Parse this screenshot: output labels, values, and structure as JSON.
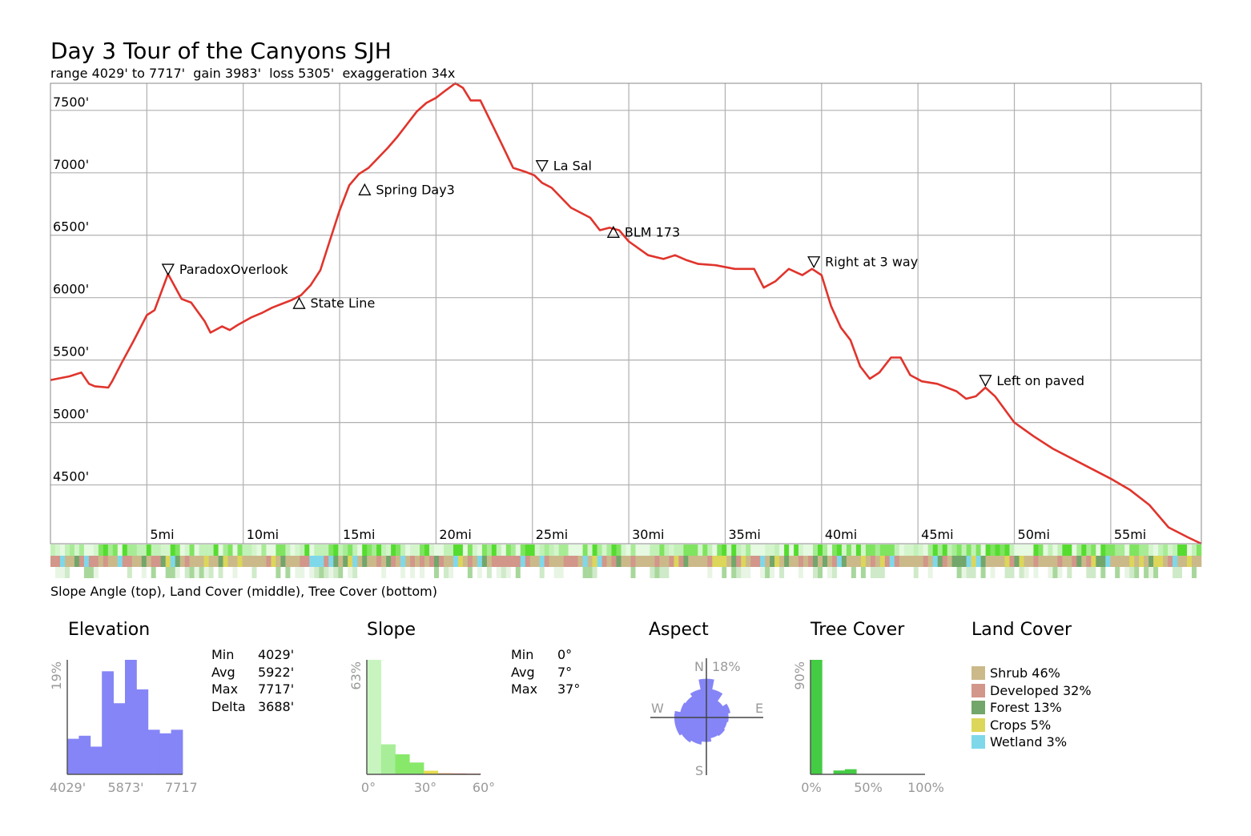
{
  "title": "Day 3 Tour of the Canyons SJH",
  "subtitle": "range 4029' to 7717'  gain 3983'  loss 5305'  exaggeration 34x",
  "strip_caption": "Slope Angle (top), Land Cover (middle), Tree Cover (bottom)",
  "colors": {
    "profile_line": "#e0342c",
    "grid": "#b0b0b0",
    "elevation_hist": "#8585f7",
    "aspect": "#8585f7",
    "tree_cover_hist": "#44cc44",
    "axis_text_gray": "#999999"
  },
  "chart_data": [
    {
      "type": "line",
      "title": "Day 3 Tour of the Canyons SJH",
      "subtitle": "range 4029' to 7717'  gain 3983'  loss 5305'  exaggeration 34x",
      "x_unit": "mi",
      "y_unit": "ft",
      "xlim": [
        0,
        59.7
      ],
      "ylim": [
        4029,
        7717
      ],
      "x_ticks": [
        5,
        10,
        15,
        20,
        25,
        30,
        35,
        40,
        45,
        50,
        55
      ],
      "x_tick_labels": [
        "5mi",
        "10mi",
        "15mi",
        "20mi",
        "25mi",
        "30mi",
        "35mi",
        "40mi",
        "45mi",
        "50mi",
        "55mi"
      ],
      "y_ticks": [
        4500,
        5000,
        5500,
        6000,
        6500,
        7000,
        7500
      ],
      "y_tick_labels": [
        "4500'",
        "5000'",
        "5500'",
        "6000'",
        "6500'",
        "7000'",
        "7500'"
      ],
      "grid": true,
      "series": [
        {
          "x": [
            0,
            1,
            1.6,
            2,
            2.3,
            3,
            3.2,
            3.7,
            4.3,
            5,
            5.4,
            6.1,
            6.8,
            7.3,
            8,
            8.3,
            8.9,
            9.3,
            9.7,
            10.4,
            11,
            11.5,
            12,
            12.5,
            13,
            13.5,
            14,
            14.5,
            15,
            15.5,
            16,
            16.5,
            17,
            17.5,
            18,
            18.5,
            19,
            19.5,
            20,
            20.5,
            21,
            21.4,
            21.8,
            22.3,
            23,
            23.5,
            24,
            24.6,
            25.1,
            25.5,
            26,
            27,
            28,
            28.5,
            29,
            29.5,
            30,
            31,
            31.8,
            32.4,
            33,
            33.6,
            34.5,
            35.5,
            36.5,
            37,
            37.6,
            38.3,
            39,
            39.5,
            40,
            40.5,
            41,
            41.5,
            42,
            42.5,
            43,
            43.6,
            44.1,
            44.6,
            45.2,
            46,
            47,
            47.5,
            48,
            48.5,
            49,
            50,
            51,
            52,
            53,
            54,
            55,
            56,
            57,
            58,
            59,
            59.7
          ],
          "y": [
            5340,
            5370,
            5400,
            5310,
            5290,
            5280,
            5330,
            5480,
            5650,
            5860,
            5900,
            6190,
            5990,
            5960,
            5810,
            5720,
            5770,
            5740,
            5780,
            5840,
            5880,
            5920,
            5950,
            5980,
            6020,
            6100,
            6220,
            6460,
            6700,
            6900,
            6990,
            7040,
            7120,
            7200,
            7290,
            7390,
            7490,
            7560,
            7600,
            7660,
            7717,
            7680,
            7580,
            7580,
            7360,
            7200,
            7040,
            7010,
            6980,
            6920,
            6880,
            6720,
            6640,
            6540,
            6560,
            6540,
            6450,
            6340,
            6310,
            6340,
            6300,
            6270,
            6260,
            6230,
            6230,
            6080,
            6130,
            6230,
            6180,
            6230,
            6180,
            5930,
            5760,
            5660,
            5450,
            5350,
            5400,
            5520,
            5520,
            5380,
            5330,
            5310,
            5250,
            5190,
            5210,
            5280,
            5210,
            5000,
            4890,
            4790,
            4710,
            4630,
            4550,
            4460,
            4340,
            4160,
            4080,
            4029
          ]
        }
      ],
      "annotations": [
        {
          "label": "ParadoxOverlook",
          "x": 6.1,
          "y": 6190,
          "marker": "down-triangle"
        },
        {
          "label": "State Line",
          "x": 12.9,
          "y": 5920,
          "marker": "up-triangle"
        },
        {
          "label": "Spring Day3",
          "x": 16.3,
          "y": 6830,
          "marker": "up-triangle"
        },
        {
          "label": "La Sal",
          "x": 25.5,
          "y": 7020,
          "marker": "down-triangle"
        },
        {
          "label": "BLM 173",
          "x": 29.2,
          "y": 6490,
          "marker": "up-triangle"
        },
        {
          "label": "Right at 3 way",
          "x": 39.6,
          "y": 6250,
          "marker": "down-triangle"
        },
        {
          "label": "Left on paved",
          "x": 48.5,
          "y": 5300,
          "marker": "down-triangle"
        }
      ]
    },
    {
      "type": "bar",
      "title": "Elevation",
      "x_tick_labels": [
        "4029'",
        "5873'",
        "7717"
      ],
      "y_label": "19%",
      "ylim": [
        0,
        19
      ],
      "values": [
        5.9,
        6.4,
        4.6,
        17.1,
        11.8,
        19,
        14.1,
        7.4,
        6.8,
        7.4
      ],
      "stats": [
        {
          "label": "Min",
          "value": "4029'"
        },
        {
          "label": "Avg",
          "value": "5922'"
        },
        {
          "label": "Max",
          "value": "7717'"
        },
        {
          "label": "Delta",
          "value": "3688'"
        }
      ]
    },
    {
      "type": "bar",
      "title": "Slope",
      "x_tick_labels": [
        "0°",
        "30°",
        "60°"
      ],
      "y_label": "63%",
      "ylim": [
        0,
        63
      ],
      "values": [
        63,
        16.5,
        11,
        6.5,
        2,
        0.6,
        0.5,
        0.4
      ],
      "bar_colors": [
        "#c8f5bf",
        "#a8ee98",
        "#88e86a",
        "#88e86a",
        "#e6dc50",
        "#ee9a50",
        "#dd5040",
        "#dd5040"
      ],
      "stats": [
        {
          "label": "Min",
          "value": "0°"
        },
        {
          "label": "Avg",
          "value": "7°"
        },
        {
          "label": "Max",
          "value": "37°"
        }
      ]
    },
    {
      "type": "pie",
      "title": "Aspect",
      "direction_labels": [
        "N",
        "E",
        "S",
        "W"
      ],
      "max_label": "18%",
      "sectors": [
        17.5,
        13,
        9,
        11,
        10,
        9.5,
        10,
        9.5,
        11,
        12.5,
        13.5,
        14.5,
        14.5,
        12,
        11.5,
        13
      ]
    },
    {
      "type": "bar",
      "title": "Tree Cover",
      "x_tick_labels": [
        "0%",
        "50%",
        "100%"
      ],
      "y_label": "90%",
      "ylim": [
        0,
        90
      ],
      "values": [
        90,
        0,
        3,
        4,
        0,
        0,
        0,
        0,
        0,
        0
      ]
    },
    {
      "type": "table",
      "title": "Land Cover",
      "categories": [
        "Shrub 46%",
        "Developed 32%",
        "Forest 13%",
        "Crops 5%",
        "Wetland 3%"
      ],
      "values": [
        46,
        32,
        13,
        5,
        3
      ],
      "colors": [
        "#cbb98a",
        "#d2968a",
        "#72a66a",
        "#dcd65a",
        "#7fd8ea"
      ]
    }
  ]
}
